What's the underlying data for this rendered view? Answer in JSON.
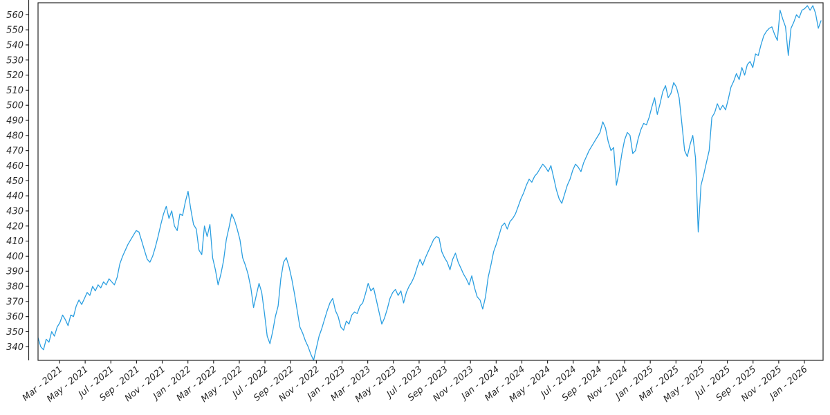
{
  "chart_data": {
    "type": "line",
    "title": "",
    "legend": null,
    "grid": false,
    "background_color": "#ffffff",
    "line_color": "#2b9fe1",
    "axis_color": "#262626",
    "tick_label_color": "#262626",
    "ylim": [
      330,
      568
    ],
    "yticks": [
      340,
      350,
      360,
      370,
      380,
      390,
      400,
      410,
      420,
      430,
      440,
      450,
      460,
      470,
      480,
      490,
      500,
      510,
      520,
      530,
      540,
      550,
      560
    ],
    "xtick_labels": [
      "Mar - 2021",
      "May - 2021",
      "Jul - 2021",
      "Sep - 2021",
      "Nov - 2021",
      "Jan - 2022",
      "Mar - 2022",
      "May - 2022",
      "Jul - 2022",
      "Sep - 2022",
      "Nov - 2022",
      "Jan - 2023",
      "Mar - 2023",
      "May - 2023",
      "Jul - 2023",
      "Sep - 2023",
      "Nov - 2023",
      "Jan - 2024",
      "Mar - 2024",
      "May - 2024",
      "Jul - 2024",
      "Sep - 2024",
      "Nov - 2024",
      "Jan - 2025",
      "Mar - 2025",
      "May - 2025",
      "Jul - 2025",
      "Sep - 2025",
      "Nov - 2025",
      "Jan - 2026"
    ],
    "x_spacing": "uniform",
    "values": [
      346,
      340,
      338,
      345,
      343,
      350,
      347,
      353,
      356,
      361,
      358,
      354,
      361,
      360,
      367,
      371,
      368,
      372,
      376,
      374,
      380,
      377,
      381,
      379,
      383,
      381,
      385,
      383,
      381,
      386,
      395,
      400,
      404,
      408,
      411,
      414,
      417,
      416,
      410,
      404,
      398,
      396,
      400,
      406,
      413,
      421,
      428,
      433,
      425,
      430,
      420,
      417,
      428,
      427,
      436,
      443,
      431,
      421,
      418,
      404,
      401,
      420,
      413,
      421,
      399,
      391,
      381,
      388,
      397,
      411,
      419,
      428,
      424,
      418,
      411,
      399,
      394,
      388,
      379,
      366,
      374,
      382,
      376,
      362,
      347,
      342,
      350,
      360,
      367,
      385,
      396,
      399,
      393,
      385,
      375,
      364,
      353,
      349,
      344,
      340,
      335,
      331,
      339,
      347,
      352,
      358,
      364,
      369,
      372,
      364,
      360,
      353,
      351,
      357,
      355,
      361,
      363,
      362,
      367,
      369,
      375,
      382,
      377,
      379,
      371,
      363,
      355,
      359,
      365,
      372,
      376,
      378,
      374,
      377,
      369,
      376,
      380,
      383,
      387,
      393,
      398,
      394,
      399,
      403,
      407,
      411,
      413,
      412,
      403,
      399,
      396,
      391,
      398,
      402,
      396,
      392,
      388,
      385,
      381,
      387,
      379,
      373,
      371,
      365,
      373,
      386,
      394,
      403,
      408,
      414,
      420,
      422,
      418,
      423,
      425,
      428,
      433,
      438,
      442,
      447,
      451,
      449,
      453,
      455,
      458,
      461,
      459,
      456,
      460,
      452,
      444,
      438,
      435,
      441,
      447,
      451,
      457,
      461,
      459,
      456,
      462,
      466,
      470,
      473,
      476,
      479,
      482,
      489,
      485,
      476,
      470,
      472,
      447,
      456,
      468,
      477,
      482,
      480,
      468,
      470,
      478,
      484,
      488,
      487,
      492,
      499,
      505,
      494,
      501,
      509,
      513,
      505,
      508,
      515,
      512,
      505,
      488,
      470,
      466,
      474,
      480,
      465,
      416,
      447,
      454,
      462,
      470,
      492,
      495,
      501,
      497,
      500,
      497,
      504,
      512,
      516,
      521,
      517,
      525,
      520,
      527,
      529,
      525,
      534,
      533,
      540,
      546,
      549,
      551,
      552,
      547,
      543,
      563,
      557,
      552,
      533,
      551,
      555,
      560,
      558,
      563,
      564,
      566,
      563,
      566,
      561,
      551,
      556
    ]
  }
}
